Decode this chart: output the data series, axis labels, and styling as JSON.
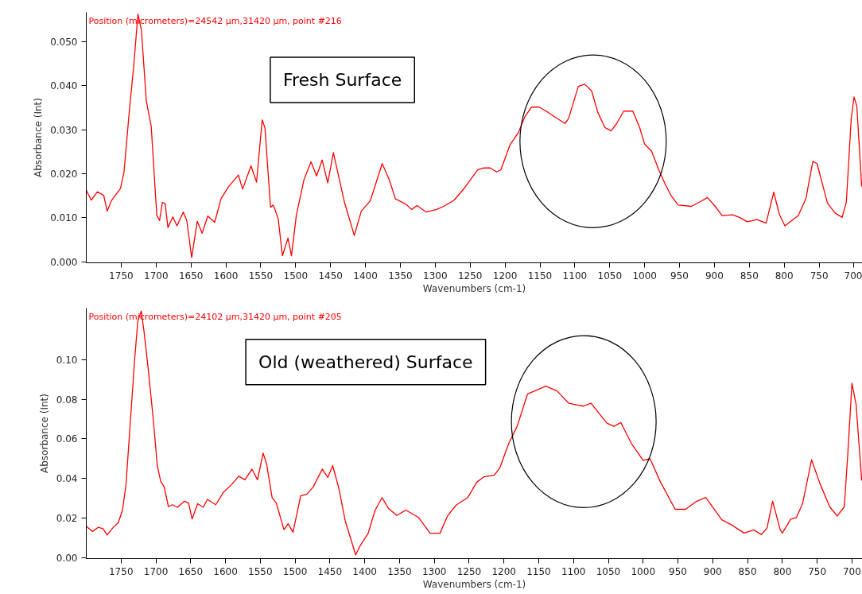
{
  "chart_data": [
    {
      "type": "line",
      "title": "Fresh Surface",
      "xlabel": "Wavenumbers (cm-1)",
      "ylabel": "Absorbance (Int)",
      "annotations": [
        "Position (micrometers)=24542 µm,31420 µm, point #216"
      ],
      "grid": false,
      "marker": "none",
      "line_style": "solid",
      "xlim": [
        1800,
        688
      ],
      "ylim": [
        -0.0002,
        0.0566
      ],
      "xticks": [
        1750,
        1700,
        1650,
        1600,
        1550,
        1500,
        1450,
        1400,
        1350,
        1300,
        1250,
        1200,
        1150,
        1100,
        1050,
        1000,
        950,
        900,
        850,
        800,
        750,
        700
      ],
      "yticks": [
        {
          "value": 0,
          "label": "0.000"
        },
        {
          "value": 0.01,
          "label": "0.010"
        },
        {
          "value": 0.02,
          "label": "0.020"
        },
        {
          "value": 0.03,
          "label": "0.030"
        },
        {
          "value": 0.04,
          "label": "0.040"
        },
        {
          "value": 0.05,
          "label": "0.050"
        }
      ],
      "series": [
        {
          "color": "#ff0000",
          "x": [
            1800,
            1793,
            1784,
            1775,
            1770,
            1764,
            1751,
            1746,
            1738,
            1732,
            1726,
            1721,
            1714,
            1707,
            1699,
            1695,
            1691,
            1687,
            1683,
            1676,
            1670,
            1661,
            1656,
            1649,
            1641,
            1634,
            1626,
            1616,
            1607,
            1596,
            1582,
            1576,
            1564,
            1556,
            1548,
            1544,
            1536,
            1532,
            1525,
            1519,
            1511,
            1506,
            1499,
            1488,
            1478,
            1470,
            1462,
            1454,
            1446,
            1430,
            1416,
            1406,
            1393,
            1376,
            1366,
            1357,
            1342,
            1334,
            1326,
            1313,
            1298,
            1288,
            1273,
            1258,
            1239,
            1231,
            1221,
            1212,
            1206,
            1193,
            1181,
            1172,
            1162,
            1151,
            1141,
            1128,
            1114,
            1109,
            1095,
            1086,
            1076,
            1067,
            1057,
            1048,
            1040,
            1030,
            1017,
            1007,
            1000,
            990,
            979,
            971,
            962,
            952,
            933,
            921,
            910,
            899,
            889,
            874,
            864,
            853,
            839,
            826,
            815,
            807,
            799,
            780,
            769,
            759,
            753,
            738,
            727,
            717,
            711,
            704,
            700,
            696,
            689
          ],
          "values": [
            0.0163,
            0.014,
            0.0159,
            0.0151,
            0.0115,
            0.0139,
            0.0167,
            0.0203,
            0.0348,
            0.0445,
            0.0562,
            0.0526,
            0.0365,
            0.0308,
            0.0106,
            0.0094,
            0.0135,
            0.0132,
            0.0078,
            0.0102,
            0.0082,
            0.0113,
            0.0094,
            0.001,
            0.0092,
            0.0065,
            0.0104,
            0.009,
            0.0143,
            0.0171,
            0.0197,
            0.0165,
            0.0218,
            0.0181,
            0.0322,
            0.0304,
            0.0124,
            0.0129,
            0.0098,
            0.0014,
            0.0054,
            0.0014,
            0.0106,
            0.0187,
            0.0227,
            0.0195,
            0.0231,
            0.0179,
            0.0248,
            0.0135,
            0.006,
            0.0115,
            0.0139,
            0.0223,
            0.0187,
            0.0143,
            0.0131,
            0.0119,
            0.0128,
            0.0113,
            0.0119,
            0.0126,
            0.014,
            0.0168,
            0.0209,
            0.0213,
            0.0213,
            0.0204,
            0.0209,
            0.0265,
            0.0293,
            0.0328,
            0.0351,
            0.0351,
            0.0342,
            0.0328,
            0.0314,
            0.0325,
            0.0398,
            0.0403,
            0.0388,
            0.0339,
            0.0305,
            0.0297,
            0.0314,
            0.0342,
            0.0342,
            0.0304,
            0.0267,
            0.0251,
            0.0206,
            0.0178,
            0.015,
            0.0129,
            0.0126,
            0.0136,
            0.0146,
            0.0126,
            0.0105,
            0.0107,
            0.0101,
            0.0091,
            0.0096,
            0.0088,
            0.0158,
            0.0108,
            0.0082,
            0.0105,
            0.0143,
            0.0228,
            0.0223,
            0.0133,
            0.0111,
            0.0101,
            0.0136,
            0.0325,
            0.0374,
            0.0353,
            0.0171
          ]
        }
      ]
    },
    {
      "type": "line",
      "title": "Old (weathered) Surface",
      "xlabel": "Wavenumbers (cm-1)",
      "ylabel": "Absorbance (Int)",
      "annotations": [
        "Position (micrometers)=24102 µm,31420 µm, point #205"
      ],
      "grid": false,
      "marker": "none",
      "line_style": "solid",
      "xlim": [
        1800,
        685
      ],
      "ylim": [
        -0.0005,
        0.126
      ],
      "xticks": [
        1750,
        1700,
        1650,
        1600,
        1550,
        1500,
        1450,
        1400,
        1350,
        1300,
        1250,
        1200,
        1150,
        1100,
        1050,
        1000,
        950,
        900,
        850,
        800,
        750,
        700
      ],
      "yticks": [
        {
          "value": 0,
          "label": "0.00"
        },
        {
          "value": 0.02,
          "label": "0.02"
        },
        {
          "value": 0.04,
          "label": "0.04"
        },
        {
          "value": 0.06,
          "label": "0.06"
        },
        {
          "value": 0.08,
          "label": "0.08"
        },
        {
          "value": 0.1,
          "label": "0.10"
        }
      ],
      "series": [
        {
          "color": "#ff0000",
          "x": [
            1800,
            1791,
            1783,
            1776,
            1770,
            1762,
            1754,
            1748,
            1743,
            1738,
            1731,
            1726,
            1721,
            1717,
            1711,
            1704,
            1698,
            1693,
            1688,
            1682,
            1676,
            1669,
            1659,
            1653,
            1648,
            1640,
            1632,
            1626,
            1614,
            1603,
            1592,
            1581,
            1572,
            1562,
            1554,
            1546,
            1541,
            1533,
            1527,
            1516,
            1510,
            1503,
            1492,
            1483,
            1474,
            1461,
            1453,
            1446,
            1437,
            1428,
            1413,
            1406,
            1395,
            1385,
            1375,
            1366,
            1354,
            1341,
            1323,
            1306,
            1292,
            1281,
            1269,
            1252,
            1239,
            1229,
            1214,
            1206,
            1193,
            1181,
            1166,
            1155,
            1140,
            1124,
            1107,
            1086,
            1075,
            1052,
            1042,
            1032,
            1017,
            1000,
            990,
            975,
            954,
            939,
            923,
            910,
            887,
            872,
            855,
            841,
            830,
            822,
            814,
            803,
            800,
            788,
            780,
            771,
            758,
            746,
            732,
            721,
            711,
            706,
            700,
            694,
            686
          ],
          "values": [
            0.0159,
            0.0132,
            0.0153,
            0.0146,
            0.0114,
            0.015,
            0.0177,
            0.024,
            0.0366,
            0.0618,
            0.0978,
            0.1195,
            0.1245,
            0.1141,
            0.0951,
            0.0708,
            0.0465,
            0.0384,
            0.0357,
            0.0258,
            0.0267,
            0.0254,
            0.0285,
            0.0276,
            0.0195,
            0.0272,
            0.0254,
            0.0294,
            0.0267,
            0.033,
            0.0366,
            0.0411,
            0.0393,
            0.0447,
            0.0393,
            0.0528,
            0.0474,
            0.0303,
            0.0276,
            0.0141,
            0.0171,
            0.0128,
            0.0312,
            0.0321,
            0.0357,
            0.0447,
            0.0405,
            0.0465,
            0.0348,
            0.0186,
            0.0014,
            0.0063,
            0.0123,
            0.024,
            0.0303,
            0.0249,
            0.0213,
            0.024,
            0.0204,
            0.0123,
            0.0123,
            0.021,
            0.0264,
            0.0303,
            0.0381,
            0.0408,
            0.0416,
            0.0452,
            0.0577,
            0.0663,
            0.0827,
            0.0843,
            0.0866,
            0.0843,
            0.078,
            0.0765,
            0.078,
            0.0679,
            0.0663,
            0.0682,
            0.0577,
            0.0491,
            0.0499,
            0.0381,
            0.0244,
            0.0244,
            0.0285,
            0.0304,
            0.0191,
            0.0163,
            0.0124,
            0.014,
            0.0116,
            0.015,
            0.0285,
            0.014,
            0.0124,
            0.0194,
            0.0202,
            0.0272,
            0.0494,
            0.0374,
            0.0257,
            0.021,
            0.0257,
            0.0522,
            0.0881,
            0.0772,
            0.0389
          ]
        }
      ]
    }
  ]
}
